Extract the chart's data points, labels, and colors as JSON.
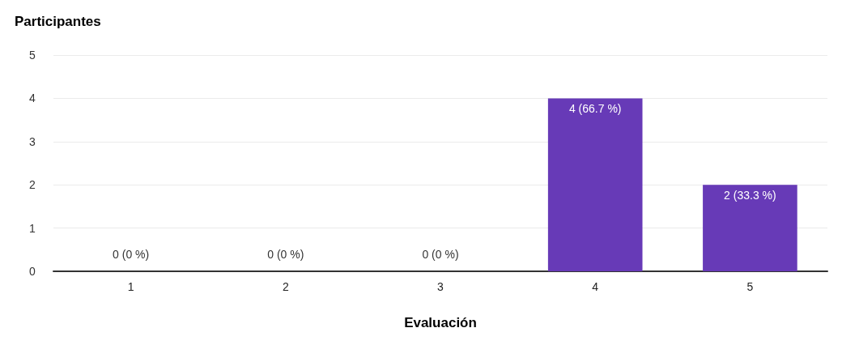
{
  "chart_data": {
    "type": "bar",
    "ylabel": "Participantes",
    "xlabel": "Evaluación",
    "categories": [
      "1",
      "2",
      "3",
      "4",
      "5"
    ],
    "values": [
      0,
      0,
      0,
      4,
      2
    ],
    "value_labels": [
      "0 (0 %)",
      "0 (0 %)",
      "0 (0 %)",
      "4 (66.7 %)",
      "2 (33.3 %)"
    ],
    "color": "#673ab7",
    "ylim": [
      0,
      5
    ],
    "yticks": [
      0,
      1,
      2,
      3,
      4,
      5
    ],
    "grid": "y"
  }
}
